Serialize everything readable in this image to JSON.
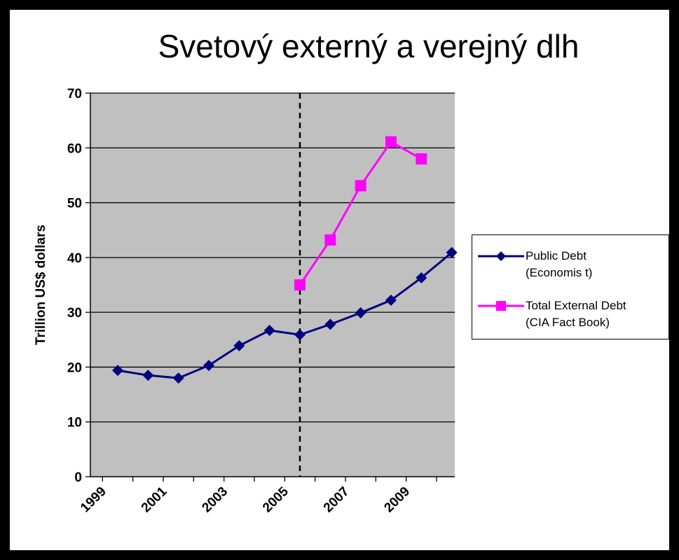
{
  "chart_data": {
    "type": "line",
    "title": "Svetový externý a verejný dlh",
    "xlabel": "",
    "ylabel": "Trillion US$ dollars",
    "ylim": [
      0,
      70
    ],
    "yticks": [
      "0",
      "10",
      "20",
      "30",
      "40",
      "50",
      "60",
      "70"
    ],
    "xlim": [
      1998.6,
      2010.6
    ],
    "xtick_labels": [
      "1999",
      "2001",
      "2003",
      "2005",
      "2007",
      "2009"
    ],
    "vertical_marker_x": 2005.5,
    "series": [
      {
        "name": "Public Debt (Economist)",
        "legend_lines": [
          "Public Debt",
          "(Economis t)"
        ],
        "color": "#000080",
        "marker": "diamond",
        "x": [
          1999.5,
          2000.5,
          2001.5,
          2002.5,
          2003.5,
          2004.5,
          2005.5,
          2006.5,
          2007.5,
          2008.5,
          2009.5,
          2010.5
        ],
        "values": [
          19.4,
          18.5,
          18.0,
          20.3,
          23.9,
          26.7,
          25.9,
          27.8,
          29.9,
          32.2,
          36.3,
          40.9
        ]
      },
      {
        "name": "Total External Debt (CIA Fact Book)",
        "legend_lines": [
          "Total External Debt",
          "(CIA Fact Book)"
        ],
        "color": "#FF00FF",
        "marker": "square",
        "x": [
          2005.5,
          2006.5,
          2007.5,
          2008.5,
          2009.5
        ],
        "values": [
          35.0,
          43.2,
          53.1,
          61.1,
          58.0
        ]
      }
    ],
    "plot_bg": "#C0C0C0",
    "grid": true,
    "legend_position": "right"
  }
}
